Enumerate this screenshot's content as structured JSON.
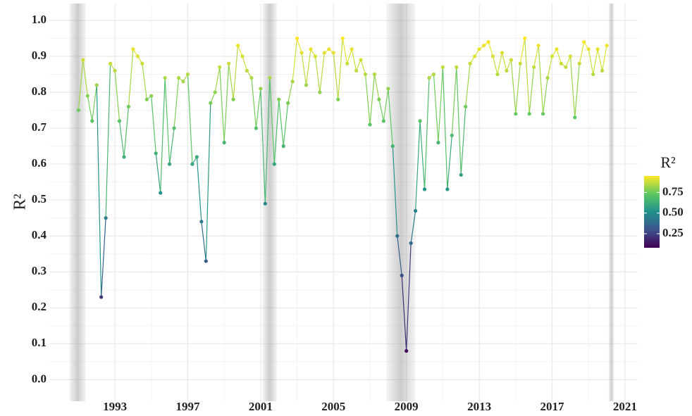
{
  "chart_data": {
    "type": "line",
    "y_label": "R²",
    "legend_title": "R²",
    "x": [
      1991,
      1991.25,
      1991.5,
      1991.75,
      1992,
      1992.25,
      1992.5,
      1992.75,
      1993,
      1993.25,
      1993.5,
      1993.75,
      1994,
      1994.25,
      1994.5,
      1994.75,
      1995,
      1995.25,
      1995.5,
      1995.75,
      1996,
      1996.25,
      1996.5,
      1996.75,
      1997,
      1997.25,
      1997.5,
      1997.75,
      1998,
      1998.25,
      1998.5,
      1998.75,
      1999,
      1999.25,
      1999.5,
      1999.75,
      2000,
      2000.25,
      2000.5,
      2000.75,
      2001,
      2001.25,
      2001.5,
      2001.75,
      2002,
      2002.25,
      2002.5,
      2002.75,
      2003,
      2003.25,
      2003.5,
      2003.75,
      2004,
      2004.25,
      2004.5,
      2004.75,
      2005,
      2005.25,
      2005.5,
      2005.75,
      2006,
      2006.25,
      2006.5,
      2006.75,
      2007,
      2007.25,
      2007.5,
      2007.75,
      2008,
      2008.25,
      2008.5,
      2008.75,
      2009,
      2009.25,
      2009.5,
      2009.75,
      2010,
      2010.25,
      2010.5,
      2010.75,
      2011,
      2011.25,
      2011.5,
      2011.75,
      2012,
      2012.25,
      2012.5,
      2012.75,
      2013,
      2013.25,
      2013.5,
      2013.75,
      2014,
      2014.25,
      2014.5,
      2014.75,
      2015,
      2015.25,
      2015.5,
      2015.75,
      2016,
      2016.25,
      2016.5,
      2016.75,
      2017,
      2017.25,
      2017.5,
      2017.75,
      2018,
      2018.25,
      2018.5,
      2018.75,
      2019,
      2019.25,
      2019.5,
      2019.75,
      2020
    ],
    "values": [
      0.75,
      0.89,
      0.79,
      0.72,
      0.82,
      0.23,
      0.45,
      0.88,
      0.86,
      0.72,
      0.62,
      0.76,
      0.92,
      0.9,
      0.88,
      0.78,
      0.79,
      0.63,
      0.52,
      0.84,
      0.6,
      0.7,
      0.84,
      0.83,
      0.85,
      0.6,
      0.62,
      0.44,
      0.33,
      0.77,
      0.8,
      0.87,
      0.66,
      0.88,
      0.78,
      0.93,
      0.9,
      0.86,
      0.84,
      0.7,
      0.81,
      0.49,
      0.84,
      0.6,
      0.78,
      0.65,
      0.77,
      0.83,
      0.95,
      0.91,
      0.82,
      0.92,
      0.9,
      0.8,
      0.91,
      0.92,
      0.91,
      0.78,
      0.95,
      0.88,
      0.92,
      0.86,
      0.89,
      0.85,
      0.71,
      0.85,
      0.78,
      0.72,
      0.81,
      0.65,
      0.4,
      0.29,
      0.08,
      0.38,
      0.47,
      0.72,
      0.53,
      0.84,
      0.85,
      0.66,
      0.87,
      0.53,
      0.68,
      0.87,
      0.57,
      0.76,
      0.88,
      0.9,
      0.92,
      0.93,
      0.94,
      0.9,
      0.85,
      0.91,
      0.86,
      0.89,
      0.74,
      0.88,
      0.95,
      0.74,
      0.87,
      0.93,
      0.74,
      0.84,
      0.9,
      0.92,
      0.88,
      0.87,
      0.9,
      0.73,
      0.88,
      0.94,
      0.92,
      0.85,
      0.92,
      0.86,
      0.93
    ],
    "recessions": [
      [
        1990.5,
        1991.4
      ],
      [
        2001.1,
        2001.9
      ],
      [
        2007.9,
        2009.5
      ],
      [
        2020.1,
        2020.4
      ]
    ],
    "xlim": [
      1989.4,
      2021.7
    ],
    "ylim": [
      -0.06,
      1.047
    ],
    "xticks": [
      1993,
      1997,
      2001,
      2005,
      2009,
      2013,
      2017,
      2021
    ],
    "yticks": [
      {
        "value": 0,
        "label": "0.0"
      },
      0.1,
      0.2,
      0.3,
      0.4,
      0.5,
      0.6,
      0.7,
      0.8,
      0.9,
      {
        "value": 1,
        "label": "1.0"
      }
    ],
    "colorscale": [
      "#440154",
      "#3b528b",
      "#21908c",
      "#5dc863",
      "#fde725"
    ],
    "colorlim": [
      0.08,
      0.95
    ],
    "colorticks": [
      0.25,
      {
        "value": 0.5,
        "label": "0.50"
      },
      0.75
    ],
    "grid": true
  }
}
